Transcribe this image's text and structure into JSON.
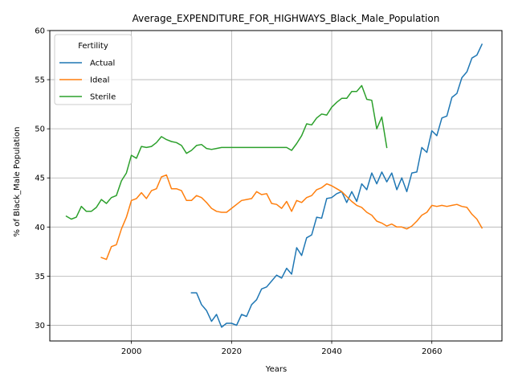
{
  "chart_data": {
    "type": "line",
    "title": "Average_EXPENDITURE_FOR_HIGHWAYS_Black_Male_Population",
    "xlabel": "Years",
    "ylabel": "% of Black_Male Population",
    "xlim": [
      1983.7,
      2074
    ],
    "ylim": [
      28.4,
      60.0
    ],
    "xticks": [
      2000,
      2020,
      2040,
      2060
    ],
    "yticks": [
      30,
      35,
      40,
      45,
      50,
      55,
      60
    ],
    "grid": true,
    "legend": {
      "title": "Fertility",
      "placement": "top-left"
    },
    "series": [
      {
        "name": "Actual",
        "color": "#1f77b4",
        "points": [
          [
            2012,
            33.3
          ],
          [
            2013,
            33.3
          ],
          [
            2014,
            32.1
          ],
          [
            2015,
            31.5
          ],
          [
            2016,
            30.4
          ],
          [
            2017,
            31.1
          ],
          [
            2018,
            29.8
          ],
          [
            2019,
            30.2
          ],
          [
            2020,
            30.2
          ],
          [
            2021,
            30.0
          ],
          [
            2022,
            31.1
          ],
          [
            2023,
            30.9
          ],
          [
            2024,
            32.1
          ],
          [
            2025,
            32.6
          ],
          [
            2026,
            33.7
          ],
          [
            2027,
            33.9
          ],
          [
            2028,
            34.5
          ],
          [
            2029,
            35.1
          ],
          [
            2030,
            34.8
          ],
          [
            2031,
            35.8
          ],
          [
            2032,
            35.2
          ],
          [
            2033,
            37.9
          ],
          [
            2034,
            37.1
          ],
          [
            2035,
            38.9
          ],
          [
            2036,
            39.2
          ],
          [
            2037,
            41.0
          ],
          [
            2038,
            40.9
          ],
          [
            2039,
            42.9
          ],
          [
            2040,
            43.0
          ],
          [
            2041,
            43.4
          ],
          [
            2042,
            43.6
          ],
          [
            2043,
            42.5
          ],
          [
            2044,
            43.6
          ],
          [
            2045,
            42.6
          ],
          [
            2046,
            44.4
          ],
          [
            2047,
            43.8
          ],
          [
            2048,
            45.5
          ],
          [
            2049,
            44.4
          ],
          [
            2050,
            45.6
          ],
          [
            2051,
            44.6
          ],
          [
            2052,
            45.5
          ],
          [
            2053,
            43.8
          ],
          [
            2054,
            45.0
          ],
          [
            2055,
            43.6
          ],
          [
            2056,
            45.5
          ],
          [
            2057,
            45.6
          ],
          [
            2058,
            48.1
          ],
          [
            2059,
            47.6
          ],
          [
            2060,
            49.8
          ],
          [
            2061,
            49.3
          ],
          [
            2062,
            51.1
          ],
          [
            2063,
            51.3
          ],
          [
            2064,
            53.2
          ],
          [
            2065,
            53.6
          ],
          [
            2066,
            55.2
          ],
          [
            2067,
            55.8
          ],
          [
            2068,
            57.2
          ],
          [
            2069,
            57.5
          ],
          [
            2070,
            58.6
          ]
        ]
      },
      {
        "name": "Ideal",
        "color": "#ff7f0e",
        "points": [
          [
            1994,
            36.9
          ],
          [
            1995,
            36.7
          ],
          [
            1996,
            38.0
          ],
          [
            1997,
            38.2
          ],
          [
            1998,
            39.8
          ],
          [
            1999,
            41.0
          ],
          [
            2000,
            42.7
          ],
          [
            2001,
            42.9
          ],
          [
            2002,
            43.5
          ],
          [
            2003,
            42.9
          ],
          [
            2004,
            43.7
          ],
          [
            2005,
            43.9
          ],
          [
            2006,
            45.1
          ],
          [
            2007,
            45.3
          ],
          [
            2008,
            43.9
          ],
          [
            2009,
            43.9
          ],
          [
            2010,
            43.7
          ],
          [
            2011,
            42.7
          ],
          [
            2012,
            42.7
          ],
          [
            2013,
            43.2
          ],
          [
            2014,
            43.0
          ],
          [
            2015,
            42.5
          ],
          [
            2016,
            41.9
          ],
          [
            2017,
            41.6
          ],
          [
            2018,
            41.5
          ],
          [
            2019,
            41.5
          ],
          [
            2020,
            41.9
          ],
          [
            2021,
            42.3
          ],
          [
            2022,
            42.7
          ],
          [
            2023,
            42.8
          ],
          [
            2024,
            42.9
          ],
          [
            2025,
            43.6
          ],
          [
            2026,
            43.3
          ],
          [
            2027,
            43.4
          ],
          [
            2028,
            42.4
          ],
          [
            2029,
            42.3
          ],
          [
            2030,
            41.9
          ],
          [
            2031,
            42.6
          ],
          [
            2032,
            41.6
          ],
          [
            2033,
            42.7
          ],
          [
            2034,
            42.5
          ],
          [
            2035,
            43.0
          ],
          [
            2036,
            43.2
          ],
          [
            2037,
            43.8
          ],
          [
            2038,
            44.0
          ],
          [
            2039,
            44.4
          ],
          [
            2040,
            44.2
          ],
          [
            2041,
            43.9
          ],
          [
            2042,
            43.6
          ],
          [
            2043,
            43.1
          ],
          [
            2044,
            42.6
          ],
          [
            2045,
            42.2
          ],
          [
            2046,
            42.0
          ],
          [
            2047,
            41.5
          ],
          [
            2048,
            41.2
          ],
          [
            2049,
            40.6
          ],
          [
            2050,
            40.4
          ],
          [
            2051,
            40.1
          ],
          [
            2052,
            40.3
          ],
          [
            2053,
            40.0
          ],
          [
            2054,
            40.0
          ],
          [
            2055,
            39.8
          ],
          [
            2056,
            40.1
          ],
          [
            2057,
            40.6
          ],
          [
            2058,
            41.2
          ],
          [
            2059,
            41.5
          ],
          [
            2060,
            42.2
          ],
          [
            2061,
            42.1
          ],
          [
            2062,
            42.2
          ],
          [
            2063,
            42.1
          ],
          [
            2064,
            42.2
          ],
          [
            2065,
            42.3
          ],
          [
            2066,
            42.1
          ],
          [
            2067,
            42.0
          ],
          [
            2068,
            41.3
          ],
          [
            2069,
            40.8
          ],
          [
            2070,
            39.9
          ]
        ]
      },
      {
        "name": "Sterile",
        "color": "#2ca02c",
        "points": [
          [
            1987,
            41.1
          ],
          [
            1988,
            40.8
          ],
          [
            1989,
            41.0
          ],
          [
            1990,
            42.1
          ],
          [
            1991,
            41.6
          ],
          [
            1992,
            41.6
          ],
          [
            1993,
            42.0
          ],
          [
            1994,
            42.8
          ],
          [
            1995,
            42.4
          ],
          [
            1996,
            43.0
          ],
          [
            1997,
            43.2
          ],
          [
            1998,
            44.7
          ],
          [
            1999,
            45.5
          ],
          [
            2000,
            47.3
          ],
          [
            2001,
            47.0
          ],
          [
            2002,
            48.2
          ],
          [
            2003,
            48.1
          ],
          [
            2004,
            48.2
          ],
          [
            2005,
            48.6
          ],
          [
            2006,
            49.2
          ],
          [
            2007,
            48.9
          ],
          [
            2008,
            48.7
          ],
          [
            2009,
            48.6
          ],
          [
            2010,
            48.3
          ],
          [
            2011,
            47.5
          ],
          [
            2012,
            47.8
          ],
          [
            2013,
            48.3
          ],
          [
            2014,
            48.4
          ],
          [
            2015,
            48.0
          ],
          [
            2016,
            47.9
          ],
          [
            2017,
            48.0
          ],
          [
            2018,
            48.1
          ],
          [
            2019,
            48.1
          ],
          [
            2020,
            48.1
          ],
          [
            2021,
            48.1
          ],
          [
            2022,
            48.1
          ],
          [
            2023,
            48.1
          ],
          [
            2024,
            48.1
          ],
          [
            2025,
            48.1
          ],
          [
            2026,
            48.1
          ],
          [
            2027,
            48.1
          ],
          [
            2028,
            48.1
          ],
          [
            2029,
            48.1
          ],
          [
            2030,
            48.1
          ],
          [
            2031,
            48.1
          ],
          [
            2032,
            47.8
          ],
          [
            2033,
            48.5
          ],
          [
            2034,
            49.3
          ],
          [
            2035,
            50.5
          ],
          [
            2036,
            50.4
          ],
          [
            2037,
            51.1
          ],
          [
            2038,
            51.5
          ],
          [
            2039,
            51.4
          ],
          [
            2040,
            52.2
          ],
          [
            2041,
            52.7
          ],
          [
            2042,
            53.1
          ],
          [
            2043,
            53.1
          ],
          [
            2044,
            53.8
          ],
          [
            2045,
            53.8
          ],
          [
            2046,
            54.4
          ],
          [
            2047,
            53.0
          ],
          [
            2048,
            52.9
          ],
          [
            2049,
            50.0
          ],
          [
            2050,
            51.2
          ],
          [
            2051,
            48.1
          ]
        ]
      }
    ]
  }
}
